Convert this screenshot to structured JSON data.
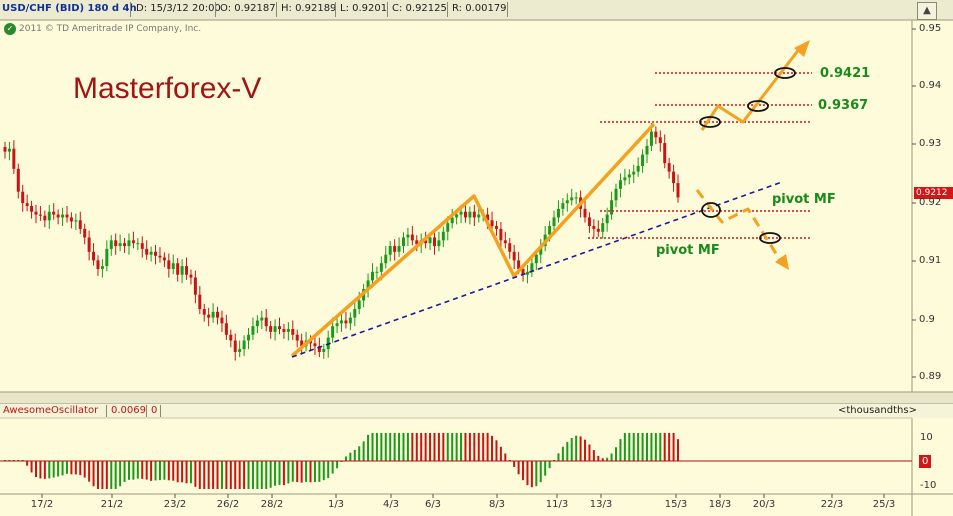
{
  "header": {
    "symbol": "USD/CHF (BID) 180 d 4h",
    "datetime": "D: 15/3/12 20:00",
    "open": "O: 0.92187",
    "high": "H: 0.92189",
    "low": "L: 0.9201",
    "close": "C: 0.92125",
    "range": "R: 0.00179"
  },
  "copyright": "2011 © TD Ameritrade IP Company, Inc.",
  "watermark": "Masterforex-V",
  "price_axis": {
    "ticks": [
      "0.95",
      "0.94",
      "0.93",
      "0.92",
      "0.91",
      "0.9",
      "0.89"
    ],
    "current_price": "0.9212"
  },
  "annotations": {
    "level_high": "0.9421",
    "level_mid": "0.9367",
    "pivot_upper": "pivot MF",
    "pivot_lower": "pivot MF"
  },
  "oscillator": {
    "name": "AwesomeOscillator",
    "value": "0.0069",
    "extra": "0",
    "unit_label": "<thousandths>",
    "ticks": [
      "10",
      "0",
      "-10"
    ],
    "current": "0"
  },
  "x_axis": {
    "labels": [
      "17/2",
      "21/2",
      "23/2",
      "26/2",
      "28/2",
      "1/3",
      "4/3",
      "6/3",
      "8/3",
      "11/3",
      "13/3",
      "15/3",
      "18/3",
      "20/3",
      "22/3",
      "25/3"
    ]
  },
  "colors": {
    "background": "#fdfbd9",
    "bull": "#1a9a1a",
    "bear": "#c81414",
    "trendline": "#f4a020",
    "support": "#1a1a9a",
    "watermark": "#a01414",
    "level_text": "#1a8a1a"
  },
  "chart_data": {
    "type": "candlestick",
    "title": "USD/CHF (BID) 180 d 4h",
    "ylim": [
      0.887,
      0.952
    ],
    "y_ticks": [
      0.95,
      0.94,
      0.93,
      0.92,
      0.91,
      0.9,
      0.89
    ],
    "x_labels": [
      "17/2",
      "21/2",
      "23/2",
      "26/2",
      "28/2",
      "1/3",
      "4/3",
      "6/3",
      "8/3",
      "11/3",
      "13/3",
      "15/3",
      "18/3",
      "20/3",
      "22/3",
      "25/3"
    ],
    "closes": [
      0.929,
      0.9295,
      0.926,
      0.922,
      0.92,
      0.9195,
      0.9185,
      0.918,
      0.9178,
      0.917,
      0.9185,
      0.918,
      0.9175,
      0.918,
      0.9175,
      0.9168,
      0.917,
      0.9155,
      0.914,
      0.9115,
      0.91,
      0.9085,
      0.909,
      0.912,
      0.9135,
      0.9125,
      0.913,
      0.9125,
      0.9135,
      0.913,
      0.913,
      0.912,
      0.911,
      0.9115,
      0.9108,
      0.9105,
      0.91,
      0.9085,
      0.9095,
      0.9075,
      0.909,
      0.9075,
      0.907,
      0.904,
      0.9015,
      0.9005,
      0.9,
      0.901,
      0.9,
      0.899,
      0.897,
      0.896,
      0.894,
      0.8945,
      0.896,
      0.897,
      0.8985,
      0.8995,
      0.9,
      0.8985,
      0.8975,
      0.8985,
      0.898,
      0.8975,
      0.898,
      0.897,
      0.896,
      0.895,
      0.896,
      0.8955,
      0.895,
      0.894,
      0.8945,
      0.8965,
      0.8985,
      0.899,
      0.8995,
      0.899,
      0.9,
      0.9015,
      0.903,
      0.905,
      0.9065,
      0.908,
      0.908,
      0.9095,
      0.911,
      0.9125,
      0.9115,
      0.9125,
      0.914,
      0.9145,
      0.9135,
      0.9128,
      0.9135,
      0.913,
      0.914,
      0.9125,
      0.9135,
      0.915,
      0.9165,
      0.9175,
      0.918,
      0.9185,
      0.9175,
      0.9185,
      0.9175,
      0.918,
      0.918,
      0.917,
      0.916,
      0.9155,
      0.9135,
      0.913,
      0.9115,
      0.91,
      0.9085,
      0.9075,
      0.908,
      0.9095,
      0.911,
      0.9125,
      0.9145,
      0.916,
      0.9175,
      0.919,
      0.92,
      0.9205,
      0.921,
      0.921,
      0.919,
      0.9175,
      0.916,
      0.9155,
      0.915,
      0.9165,
      0.918,
      0.9205,
      0.9225,
      0.924,
      0.9245,
      0.925,
      0.9255,
      0.9265,
      0.9285,
      0.93,
      0.9325,
      0.9315,
      0.9305,
      0.927,
      0.9255,
      0.9235,
      0.921
    ],
    "price_levels": [
      0.9421,
      0.9367
    ],
    "oscillator": {
      "name": "AwesomeOscillator",
      "value": 0.0069,
      "ylim": [
        -11,
        11
      ],
      "y_ticks": [
        10,
        0,
        -10
      ]
    }
  }
}
